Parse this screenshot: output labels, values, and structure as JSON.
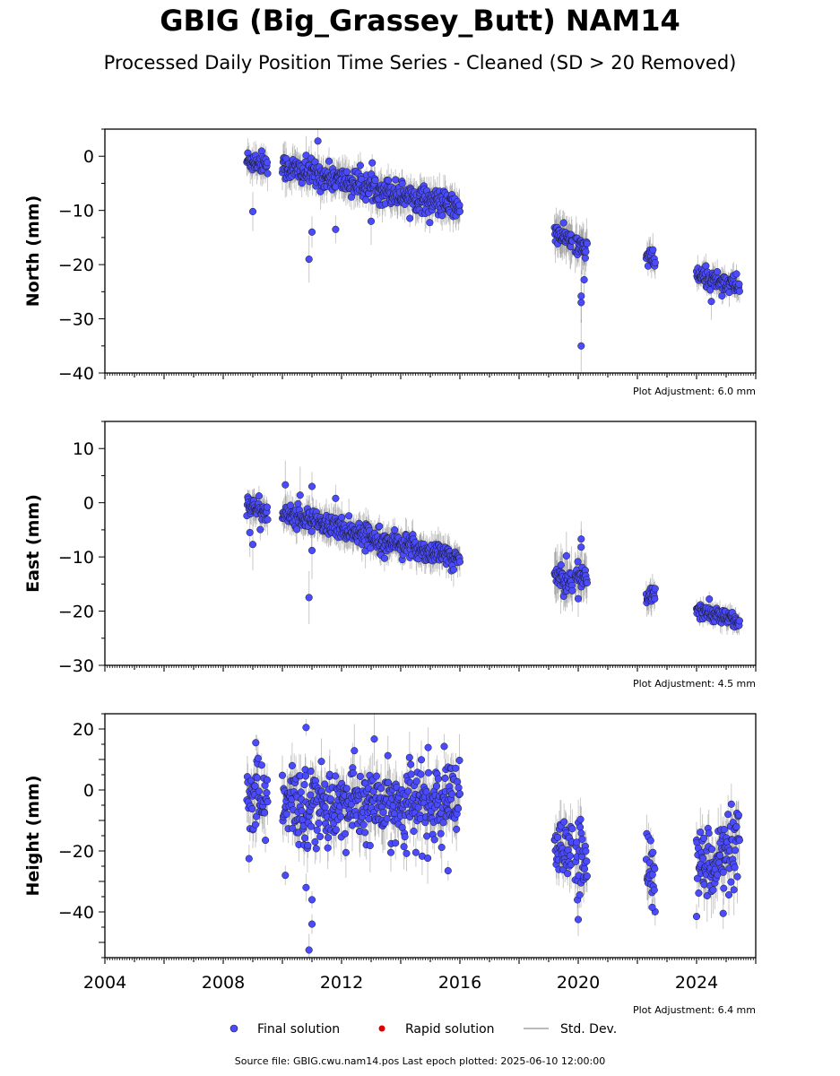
{
  "header": {
    "title": "GBIG (Big_Grassey_Butt) NAM14",
    "subtitle": "Processed Daily Position Time Series - Cleaned (SD > 20 Removed)"
  },
  "footer": {
    "source": "Source file: GBIG.cwu.nam14.pos  Last epoch plotted: 2025-06-10 12:00:00"
  },
  "legend": {
    "final": "Final solution",
    "rapid": "Rapid solution",
    "std": "Std. Dev."
  },
  "colors": {
    "final": "#4a4aff",
    "rapid": "#e00000",
    "std": "#bbbbbb"
  },
  "chart_data": [
    {
      "type": "scatter",
      "ylabel": "North (mm)",
      "xlim": [
        2004,
        2026
      ],
      "ylim": [
        -40,
        5
      ],
      "yticks": [
        0,
        -10,
        -20,
        -30,
        -40
      ],
      "xticks": [
        "2004",
        "2008",
        "2012",
        "2016",
        "2020",
        "2024"
      ],
      "show_xtick_labels": false,
      "adjustment": "Plot Adjustment: 6.0 mm",
      "segments": [
        {
          "start": 2008.8,
          "end": 2009.5,
          "y0": -0.8,
          "y1": -1.2,
          "noise": 1.0,
          "sd": 2.2
        },
        {
          "start": 2010.0,
          "end": 2016.0,
          "y0": -2.0,
          "y1": -9.5,
          "noise": 1.2,
          "sd": 2.4
        },
        {
          "start": 2019.2,
          "end": 2019.8,
          "y0": -14.3,
          "y1": -15.5,
          "noise": 0.8,
          "sd": 3.0
        },
        {
          "start": 2019.9,
          "end": 2020.3,
          "y0": -17.0,
          "y1": -17.0,
          "noise": 1.2,
          "sd": 3.0
        },
        {
          "start": 2022.3,
          "end": 2022.6,
          "y0": -18.3,
          "y1": -19.5,
          "noise": 0.9,
          "sd": 2.2
        },
        {
          "start": 2024.0,
          "end": 2025.45,
          "y0": -22.0,
          "y1": -24.0,
          "noise": 0.9,
          "sd": 1.8
        }
      ],
      "outliers": [
        [
          2009.0,
          -10.2
        ],
        [
          2010.9,
          -19.0
        ],
        [
          2011.0,
          -14.0
        ],
        [
          2011.2,
          2.8
        ],
        [
          2011.8,
          -13.5
        ],
        [
          2013.0,
          -12.0
        ],
        [
          2020.1,
          -35.0
        ],
        [
          2020.1,
          -27.0
        ],
        [
          2020.1,
          -25.8
        ],
        [
          2020.2,
          -22.8
        ],
        [
          2024.5,
          -26.8
        ]
      ]
    },
    {
      "type": "scatter",
      "ylabel": "East (mm)",
      "xlim": [
        2004,
        2026
      ],
      "ylim": [
        -30,
        15
      ],
      "yticks": [
        10,
        0,
        -10,
        -20,
        -30
      ],
      "xticks": [
        "2004",
        "2008",
        "2012",
        "2016",
        "2020",
        "2024"
      ],
      "show_xtick_labels": false,
      "adjustment": "Plot Adjustment: 4.5 mm",
      "segments": [
        {
          "start": 2008.8,
          "end": 2009.5,
          "y0": -0.5,
          "y1": -1.8,
          "noise": 0.9,
          "sd": 2.0
        },
        {
          "start": 2010.0,
          "end": 2016.0,
          "y0": -2.0,
          "y1": -10.5,
          "noise": 1.0,
          "sd": 2.2
        },
        {
          "start": 2019.2,
          "end": 2019.8,
          "y0": -13.5,
          "y1": -14.5,
          "noise": 1.0,
          "sd": 3.5
        },
        {
          "start": 2019.9,
          "end": 2020.3,
          "y0": -13.5,
          "y1": -14.0,
          "noise": 1.2,
          "sd": 3.0
        },
        {
          "start": 2022.3,
          "end": 2022.6,
          "y0": -17.5,
          "y1": -16.5,
          "noise": 0.9,
          "sd": 2.0
        },
        {
          "start": 2024.0,
          "end": 2025.45,
          "y0": -19.5,
          "y1": -22.0,
          "noise": 0.7,
          "sd": 1.5
        }
      ],
      "outliers": [
        [
          2008.9,
          -5.5
        ],
        [
          2009.0,
          -7.7
        ],
        [
          2010.1,
          3.3
        ],
        [
          2010.6,
          1.4
        ],
        [
          2010.9,
          -17.5
        ],
        [
          2011.0,
          -8.8
        ],
        [
          2011.0,
          3.0
        ],
        [
          2011.8,
          0.8
        ],
        [
          2019.6,
          -9.8
        ],
        [
          2020.1,
          -6.7
        ],
        [
          2020.1,
          -8.2
        ],
        [
          2020.0,
          -17.7
        ]
      ]
    },
    {
      "type": "scatter",
      "ylabel": "Height (mm)",
      "xlim": [
        2004,
        2026
      ],
      "ylim": [
        -55,
        25
      ],
      "yticks": [
        20,
        0,
        -20,
        -40
      ],
      "xticks": [
        "2004",
        "2008",
        "2012",
        "2016",
        "2020",
        "2024"
      ],
      "show_xtick_labels": true,
      "adjustment": "Plot Adjustment: 6.4 mm",
      "segments": [
        {
          "start": 2008.8,
          "end": 2009.5,
          "y0": 0.0,
          "y1": -5.0,
          "noise": 7.0,
          "sd": 6.0
        },
        {
          "start": 2010.0,
          "end": 2016.0,
          "y0": -5.0,
          "y1": -5.0,
          "noise": 6.5,
          "sd": 6.0
        },
        {
          "start": 2019.2,
          "end": 2019.8,
          "y0": -20.0,
          "y1": -20.0,
          "noise": 5.0,
          "sd": 6.0
        },
        {
          "start": 2019.9,
          "end": 2020.3,
          "y0": -22.0,
          "y1": -24.0,
          "noise": 6.0,
          "sd": 6.0
        },
        {
          "start": 2022.3,
          "end": 2022.6,
          "y0": -22.0,
          "y1": -24.0,
          "noise": 6.0,
          "sd": 6.0
        },
        {
          "start": 2024.0,
          "end": 2025.45,
          "y0": -25.0,
          "y1": -20.0,
          "noise": 6.0,
          "sd": 6.0
        }
      ],
      "outliers": [
        [
          2010.9,
          -52.5
        ],
        [
          2011.0,
          -44.0
        ],
        [
          2010.8,
          20.5
        ],
        [
          2011.0,
          -36.0
        ],
        [
          2010.1,
          -28.0
        ],
        [
          2010.8,
          -32.0
        ],
        [
          2020.0,
          -42.5
        ],
        [
          2022.5,
          -38.5
        ],
        [
          2024.0,
          -41.5
        ],
        [
          2024.9,
          -40.5
        ],
        [
          2015.6,
          -26.5
        ],
        [
          2009.1,
          15.5
        ]
      ]
    }
  ]
}
